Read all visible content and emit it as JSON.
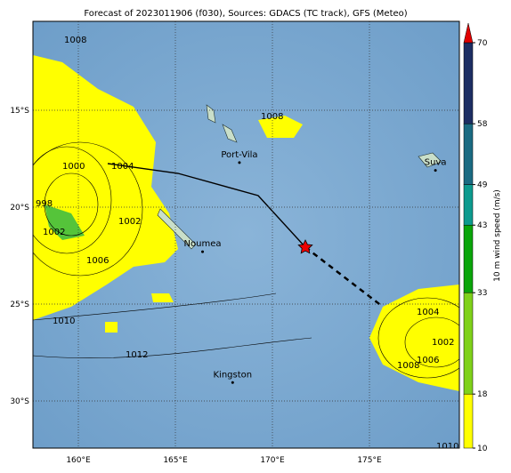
{
  "title": "Forecast of 2023011906 (f030), Sources: GDACS (TC track), GFS (Meteo)",
  "map": {
    "lon_ticks": [
      {
        "value": 160,
        "label": "160°E"
      },
      {
        "value": 165,
        "label": "165°E"
      },
      {
        "value": 170,
        "label": "170°E"
      },
      {
        "value": 175,
        "label": "175°E"
      }
    ],
    "lat_ticks": [
      {
        "value": -15,
        "label": "15°S"
      },
      {
        "value": -20,
        "label": "20°S"
      },
      {
        "value": -25,
        "label": "25°S"
      },
      {
        "value": -30,
        "label": "30°S"
      }
    ],
    "places": [
      {
        "label": "Port-Vila",
        "lon": 168.3,
        "lat": -17.7
      },
      {
        "label": "Noumea",
        "lon": 166.4,
        "lat": -22.3
      },
      {
        "label": "Suva",
        "lon": 178.4,
        "lat": -18.1
      },
      {
        "label": "Kingston",
        "lon": 167.95,
        "lat": -29.05
      }
    ],
    "contour_labels": [
      "1008",
      "1008",
      "1000",
      "1004",
      "998",
      "1002",
      "1002",
      "1006",
      "1010",
      "1012",
      "1004",
      "1002",
      "1006",
      "1008",
      "1010"
    ]
  },
  "colorbar": {
    "label": "10 m wind speed (m/s)",
    "ticks": [
      10,
      18,
      33,
      43,
      49,
      58,
      70
    ],
    "colors": [
      "#ffff00",
      "#7fd11b",
      "#0aa50a",
      "#0d9a8e",
      "#1b6b82",
      "#1d2e63"
    ],
    "extend_color": "#e00000"
  }
}
